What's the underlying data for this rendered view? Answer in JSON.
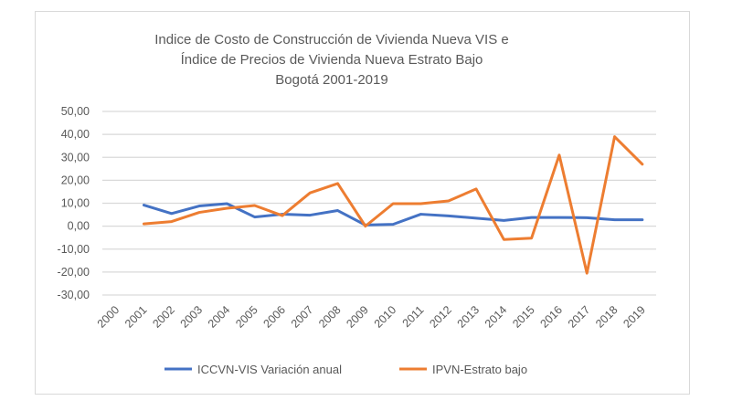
{
  "chart_data": {
    "type": "line",
    "title": [
      "Indice de Costo de Construcción  de Vivienda Nueva VIS e",
      "Índice de  Precios de Vivienda Nueva Estrato Bajo",
      "Bogotá 2001-2019"
    ],
    "xlabel": "",
    "ylabel": "",
    "categories": [
      "2000",
      "2001",
      "2002",
      "2003",
      "2004",
      "2005",
      "2006",
      "2007",
      "2008",
      "2009",
      "2010",
      "2011",
      "2012",
      "2013",
      "2014",
      "2015",
      "2016",
      "2017",
      "2018",
      "2019"
    ],
    "ylim": [
      -30,
      50
    ],
    "yticks": [
      "50,00",
      "40,00",
      "30,00",
      "20,00",
      "10,00",
      "0,00",
      "-10,00",
      "-20,00",
      "-30,00"
    ],
    "ytick_values": [
      50,
      40,
      30,
      20,
      10,
      0,
      -10,
      -20,
      -30
    ],
    "grid": true,
    "legend_position": "bottom",
    "series": [
      {
        "name": "ICCVN-VIS Variación anual",
        "color": "#4472C4",
        "values": [
          null,
          9.2,
          5.5,
          8.8,
          9.8,
          4.0,
          5.2,
          4.8,
          6.8,
          0.5,
          0.8,
          5.2,
          4.5,
          3.5,
          2.5,
          3.8,
          3.8,
          3.7,
          2.8,
          2.8
        ]
      },
      {
        "name": "IPVN-Estrato bajo",
        "color": "#ED7D31",
        "values": [
          null,
          1.0,
          2.0,
          6.0,
          7.8,
          9.0,
          4.6,
          14.5,
          18.6,
          0.0,
          9.8,
          9.8,
          11.0,
          16.2,
          -5.8,
          -5.2,
          31.0,
          -20.5,
          39.0,
          27.0
        ]
      }
    ]
  }
}
